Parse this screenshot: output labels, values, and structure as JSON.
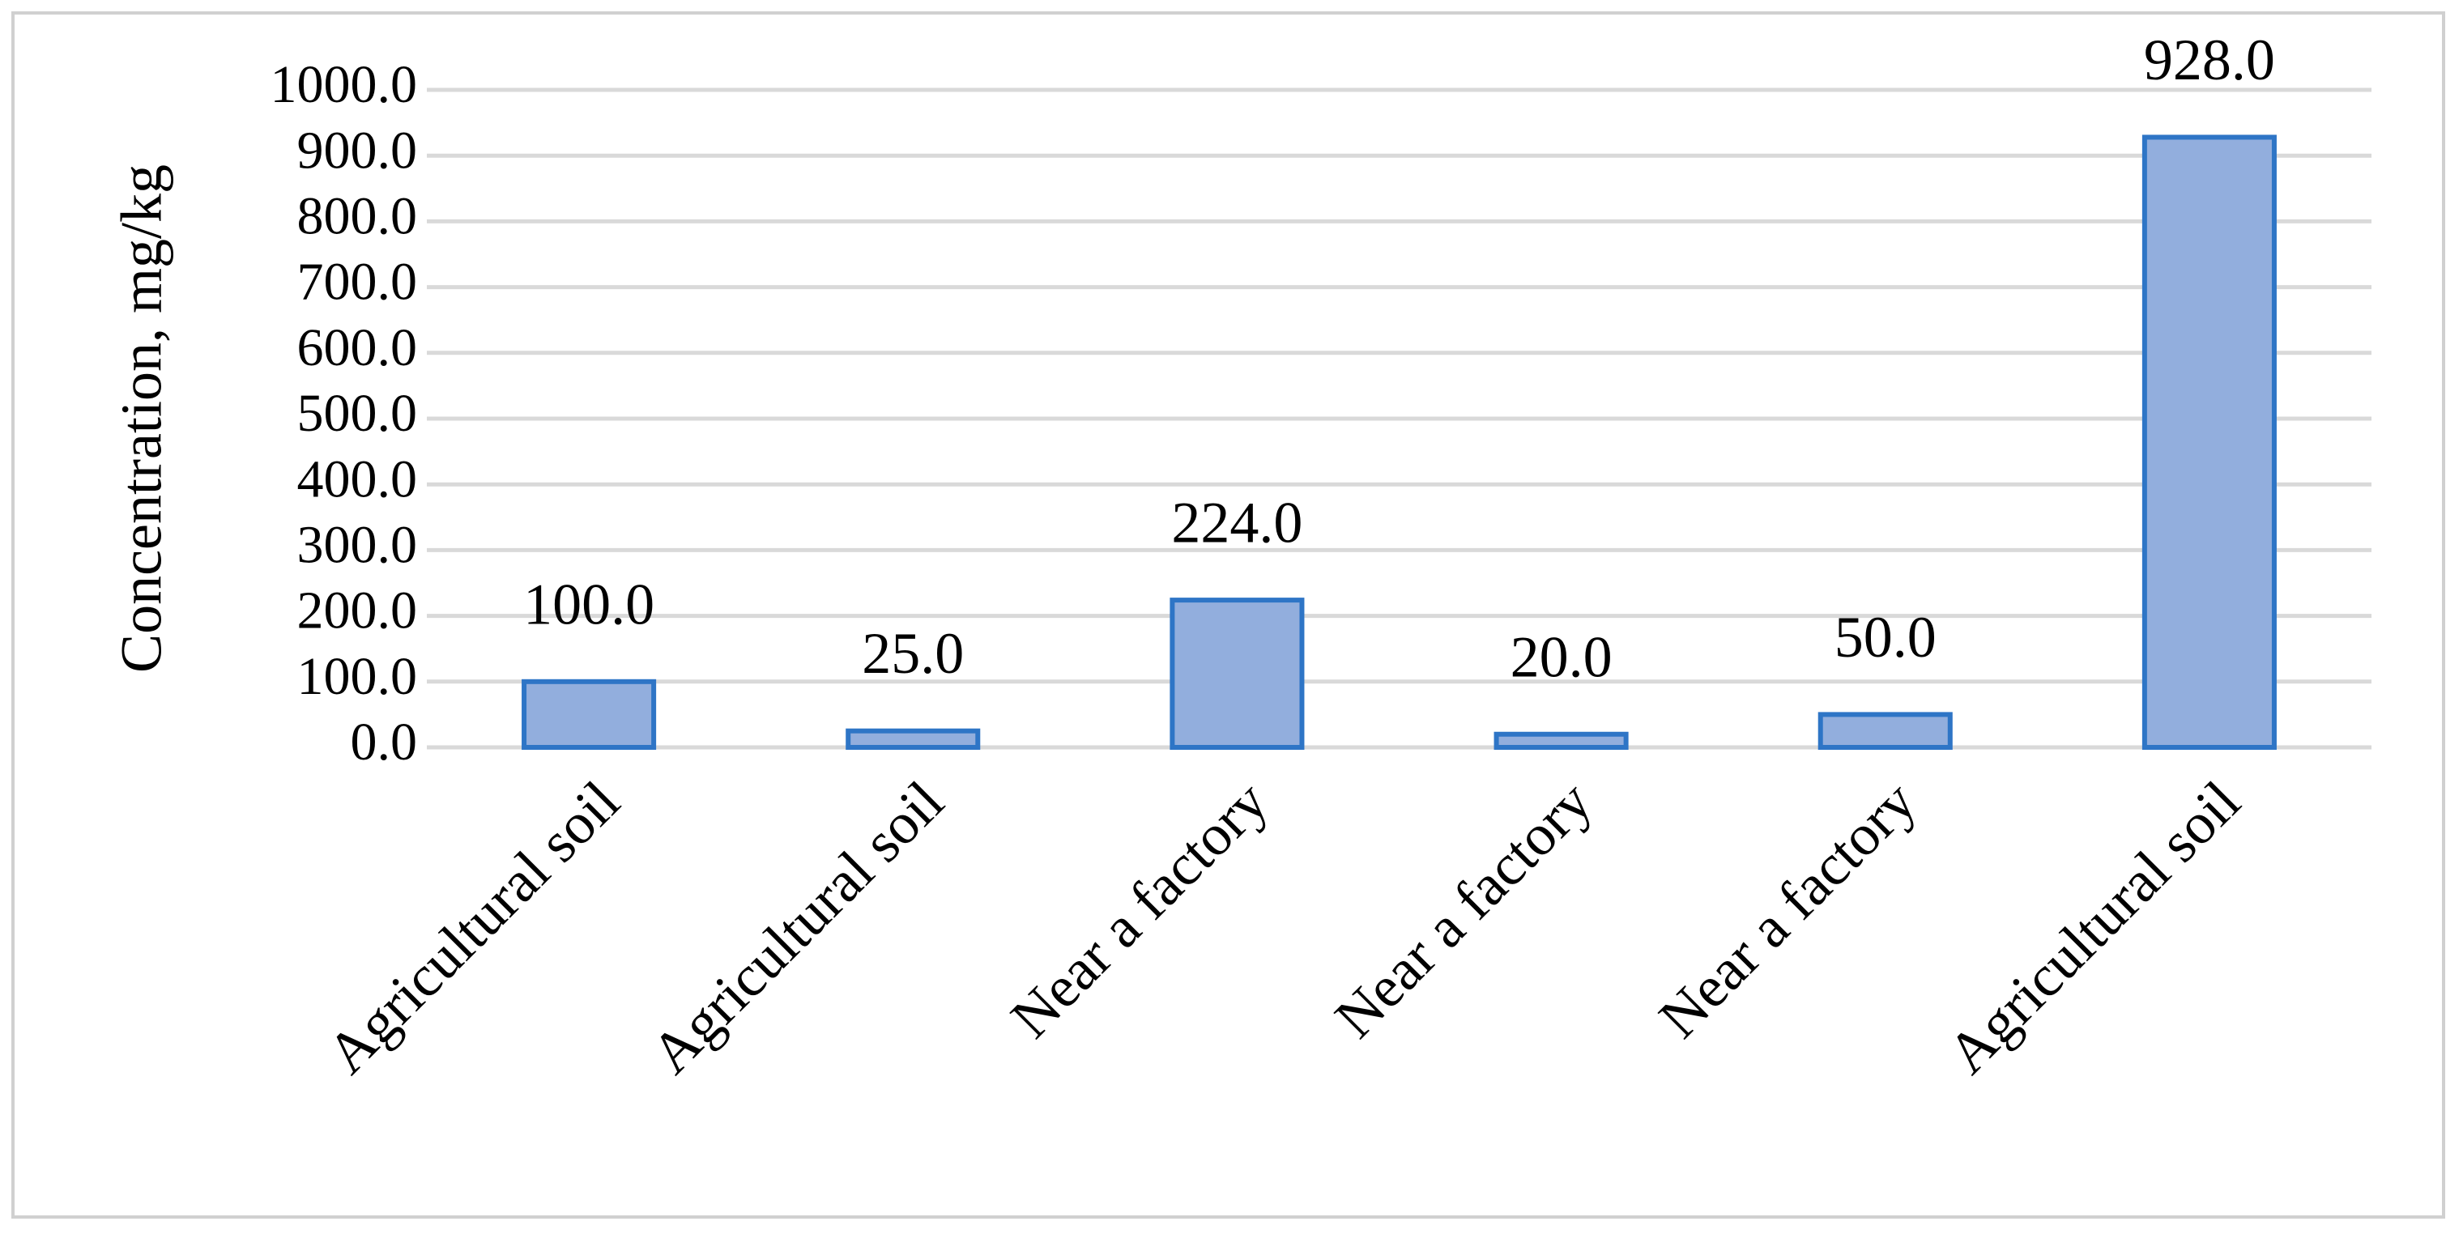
{
  "chart_data": {
    "type": "bar",
    "y_axis_label": "Concentration, mg/kg",
    "categories": [
      "Agricultural soil",
      "Agricultural soil",
      "Near a factory",
      "Near a factory",
      "Near a factory",
      "Agricultural soil"
    ],
    "values": [
      100,
      25,
      224,
      20,
      50,
      928
    ],
    "value_labels": [
      "100.0",
      "25.0",
      "224.0",
      "20.0",
      "50.0",
      "928.0"
    ],
    "color": "#92aedd",
    "edge_color": "#2e75c6",
    "ylim": [
      0,
      1000
    ],
    "yticks": [
      {
        "value": 0,
        "label": "0.0"
      },
      {
        "value": 100,
        "label": "100.0"
      },
      {
        "value": 200,
        "label": "200.0"
      },
      {
        "value": 300,
        "label": "300.0"
      },
      {
        "value": 400,
        "label": "400.0"
      },
      {
        "value": 500,
        "label": "500.0"
      },
      {
        "value": 600,
        "label": "600.0"
      },
      {
        "value": 700,
        "label": "700.0"
      },
      {
        "value": 800,
        "label": "800.0"
      },
      {
        "value": 900,
        "label": "900.0"
      },
      {
        "value": 1000,
        "label": "1000.0"
      }
    ],
    "grid": true
  }
}
